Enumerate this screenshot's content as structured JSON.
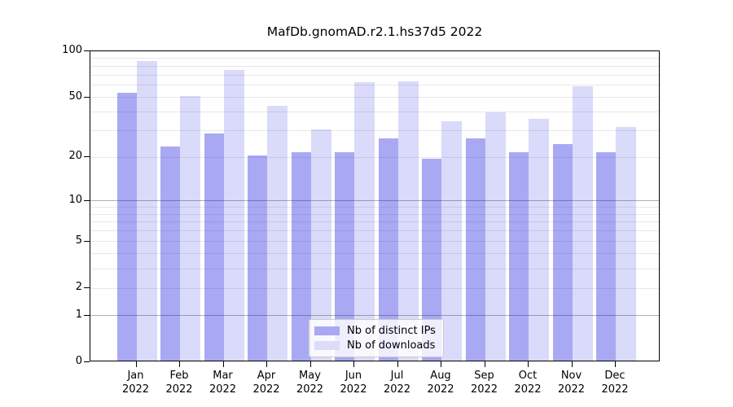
{
  "title": "MafDb.gnomAD.r2.1.hs37d5 2022",
  "colors": {
    "distinct_ips_bar": "#a9a9f3",
    "downloads_bar": "#dcdcf9",
    "distinct_ips_rgba": "rgba(10,10,220,0.35)",
    "downloads_rgba": "rgba(10,10,220,0.15)",
    "grid_major": "#b0b0b0",
    "grid_minor": "#e8e8e8",
    "axis_line": "#000000",
    "legend_border": "#cccccc"
  },
  "legend": {
    "items": [
      {
        "label": "Nb of distinct IPs",
        "series": "distinct_ips"
      },
      {
        "label": "Nb of downloads",
        "series": "downloads"
      }
    ]
  },
  "y_axis": {
    "scale": "log1p",
    "range": [
      0,
      100
    ],
    "tick_labels": [
      "100",
      "50",
      "20",
      "10",
      "5",
      "2",
      "1",
      "0"
    ],
    "tick_values": [
      100,
      50,
      20,
      10,
      5,
      2,
      1,
      0
    ],
    "major_grid_values": [
      1,
      10
    ],
    "minor_grid_values": [
      2,
      3,
      4,
      5,
      6,
      7,
      8,
      9,
      20,
      30,
      40,
      50,
      60,
      70,
      80,
      90
    ]
  },
  "x_axis": {
    "months": [
      "Jan",
      "Feb",
      "Mar",
      "Apr",
      "May",
      "Jun",
      "Jul",
      "Aug",
      "Sep",
      "Oct",
      "Nov",
      "Dec"
    ],
    "year": "2022"
  },
  "chart_data": {
    "type": "bar",
    "title": "MafDb.gnomAD.r2.1.hs37d5 2022",
    "xlabel": "",
    "ylabel": "",
    "yscale": "log1p",
    "ylim": [
      0,
      100
    ],
    "grid": true,
    "legend_position": "lower center",
    "categories": [
      "Jan 2022",
      "Feb 2022",
      "Mar 2022",
      "Apr 2022",
      "May 2022",
      "Jun 2022",
      "Jul 2022",
      "Aug 2022",
      "Sep 2022",
      "Oct 2022",
      "Nov 2022",
      "Dec 2022"
    ],
    "series": [
      {
        "name": "Nb of distinct IPs",
        "values": [
          52,
          23,
          28,
          20,
          21,
          21,
          26,
          19,
          26,
          21,
          24,
          21
        ]
      },
      {
        "name": "Nb of downloads",
        "values": [
          84,
          50,
          74,
          43,
          30,
          61,
          62,
          34,
          39,
          35,
          58,
          31
        ]
      }
    ]
  }
}
